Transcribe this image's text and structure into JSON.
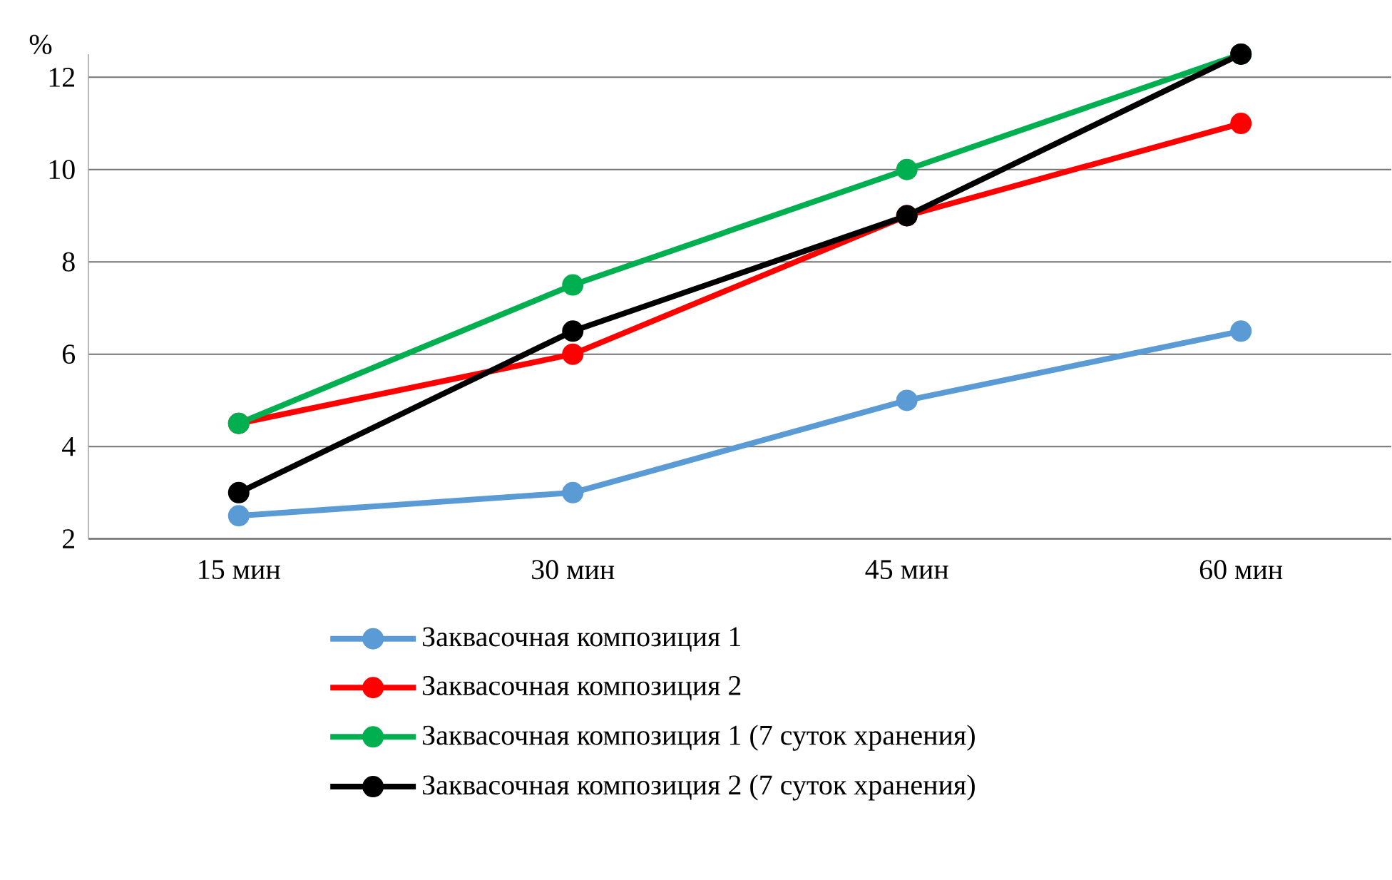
{
  "chart_data": {
    "type": "line",
    "ylabel": "%",
    "categories": [
      "15 мин",
      "30 мин",
      "45 мин",
      "60 мин"
    ],
    "series": [
      {
        "name": "Заквасочная композиция 1",
        "color": "#5b9bd5",
        "values": [
          2.5,
          3,
          5,
          6.5
        ]
      },
      {
        "name": "Заквасочная композиция 2",
        "color": "#ff0000",
        "values": [
          4.5,
          6,
          9,
          11
        ]
      },
      {
        "name": "Заквасочная композиция 1 (7 суток хранения)",
        "color": "#00b050",
        "values": [
          4.5,
          7.5,
          10,
          12.5
        ]
      },
      {
        "name": "Заквасочная композиция 2 (7 суток хранения)",
        "color": "#000000",
        "values": [
          3,
          6.5,
          9,
          12.5
        ]
      }
    ],
    "ylim": [
      2,
      12.5
    ],
    "yticks": [
      2,
      4,
      6,
      8,
      10,
      12
    ],
    "grid": "y",
    "legend": "bottom",
    "marker": "circle",
    "line_style": "solid"
  }
}
